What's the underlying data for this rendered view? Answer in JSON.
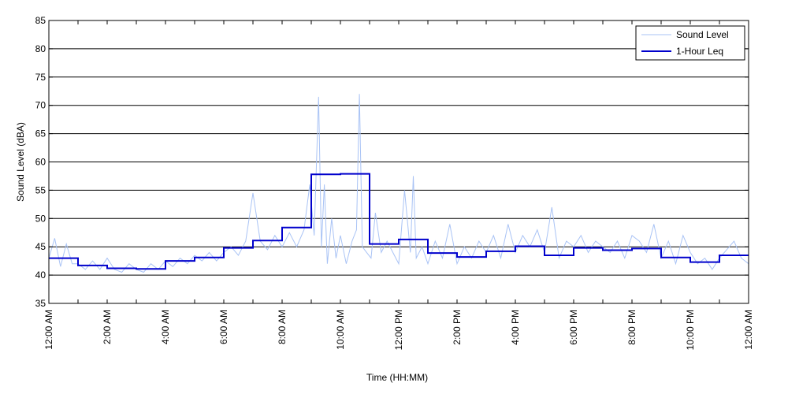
{
  "chart_data": {
    "type": "line",
    "title": "",
    "xlabel": "Time (HH:MM)",
    "ylabel": "Sound Level (dBA)",
    "ylim": [
      35,
      85
    ],
    "yticks": [
      35,
      40,
      45,
      50,
      55,
      60,
      65,
      70,
      75,
      80,
      85
    ],
    "xlim": [
      0,
      24
    ],
    "x_unit": "hours",
    "xticks": [
      {
        "x": 0,
        "label": "12:00 AM"
      },
      {
        "x": 2,
        "label": "2:00 AM"
      },
      {
        "x": 4,
        "label": "4:00 AM"
      },
      {
        "x": 6,
        "label": "6:00 AM"
      },
      {
        "x": 8,
        "label": "8:00 AM"
      },
      {
        "x": 10,
        "label": "10:00 AM"
      },
      {
        "x": 12,
        "label": "12:00 PM"
      },
      {
        "x": 14,
        "label": "2:00 PM"
      },
      {
        "x": 16,
        "label": "4:00 PM"
      },
      {
        "x": 18,
        "label": "6:00 PM"
      },
      {
        "x": 20,
        "label": "8:00 PM"
      },
      {
        "x": 22,
        "label": "10:00 PM"
      },
      {
        "x": 24,
        "label": "12:00 AM"
      }
    ],
    "grid": "horizontal",
    "legend_position": "top-right",
    "series": [
      {
        "name": "Sound Level",
        "color": "#a9c3f5",
        "style": "thin-line",
        "x": [
          0,
          0.2,
          0.4,
          0.6,
          0.8,
          1.0,
          1.25,
          1.5,
          1.75,
          2.0,
          2.25,
          2.5,
          2.75,
          3.0,
          3.25,
          3.5,
          3.75,
          4.0,
          4.25,
          4.5,
          4.75,
          5.0,
          5.25,
          5.5,
          5.75,
          6.0,
          6.25,
          6.5,
          6.75,
          7.0,
          7.25,
          7.5,
          7.75,
          8.0,
          8.25,
          8.5,
          8.75,
          8.95,
          9.1,
          9.25,
          9.35,
          9.45,
          9.55,
          9.7,
          9.85,
          10.0,
          10.2,
          10.4,
          10.55,
          10.65,
          10.75,
          10.9,
          11.05,
          11.2,
          11.4,
          11.6,
          11.8,
          12.0,
          12.2,
          12.4,
          12.5,
          12.6,
          12.8,
          13.0,
          13.25,
          13.5,
          13.75,
          14.0,
          14.25,
          14.5,
          14.75,
          15.0,
          15.25,
          15.5,
          15.75,
          16.0,
          16.25,
          16.5,
          16.75,
          17.0,
          17.25,
          17.5,
          17.75,
          18.0,
          18.25,
          18.5,
          18.75,
          19.0,
          19.25,
          19.5,
          19.75,
          20.0,
          20.25,
          20.5,
          20.75,
          21.0,
          21.25,
          21.5,
          21.75,
          22.0,
          22.25,
          22.5,
          22.75,
          23.0,
          23.25,
          23.5,
          23.75,
          24.0
        ],
        "values": [
          43,
          46.5,
          41.5,
          45.5,
          42,
          42,
          41,
          42.5,
          41,
          43,
          41,
          40.5,
          42,
          41,
          40.5,
          42,
          41,
          42.5,
          41.5,
          43,
          42,
          43.5,
          42.5,
          44,
          42.5,
          44,
          45,
          43.5,
          46,
          54.5,
          46,
          44.5,
          47,
          45,
          47.5,
          45,
          48,
          56,
          47,
          71.5,
          45,
          56,
          42,
          50,
          43,
          47,
          42,
          46,
          48,
          72,
          45,
          44,
          43,
          51,
          44,
          46,
          44,
          42,
          55,
          44,
          57.5,
          43,
          45,
          42,
          46,
          43,
          49,
          42,
          45,
          43,
          46,
          44,
          47,
          43,
          49,
          44,
          47,
          45,
          48,
          44,
          52,
          43,
          46,
          45,
          47,
          44,
          46,
          45,
          44,
          46,
          43,
          47,
          46,
          44,
          49,
          43,
          46,
          42,
          47,
          44,
          42,
          43,
          41,
          43,
          44.5,
          46,
          43,
          42
        ]
      },
      {
        "name": "1-Hour Leq",
        "color": "#0000cc",
        "style": "step",
        "x": [
          0,
          1,
          2,
          3,
          4,
          5,
          6,
          7,
          8,
          9,
          10,
          11,
          12,
          13,
          14,
          15,
          16,
          17,
          18,
          19,
          20,
          21,
          22,
          23
        ],
        "values": [
          43,
          41.7,
          41.2,
          41.1,
          42.5,
          43.1,
          44.8,
          46.1,
          48.4,
          57.8,
          57.9,
          45.5,
          46.3,
          43.9,
          43.2,
          44.2,
          45.1,
          43.5,
          44.8,
          44.4,
          44.7,
          43.1,
          42.3,
          43.5
        ]
      }
    ]
  }
}
